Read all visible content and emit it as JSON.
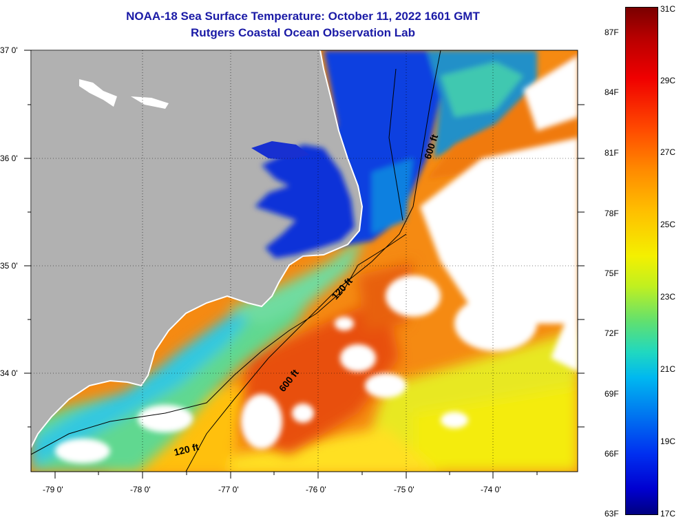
{
  "header": {
    "title": "NOAA-18 Sea Surface Temperature:  October 11, 2022 1601 GMT",
    "subtitle": "Rutgers Coastal Ocean Observation Lab"
  },
  "map": {
    "latitude_labels": [
      "37 0'",
      "36 0'",
      "35 0'",
      "34 0'"
    ],
    "longitude_labels": [
      "-79 0'",
      "-78 0'",
      "-77 0'",
      "-76 0'",
      "-75 0'",
      "-74 0'"
    ],
    "contour_labels": [
      "600 ft",
      "120 ft",
      "600 ft",
      "120 ft"
    ],
    "colors": {
      "land": "#b1b1b1",
      "cloud": "#ffffff",
      "cold_water": "#1030d8",
      "cool_water": "#20c0e0",
      "warm_water": "#ffd000",
      "hot_water": "#f06010"
    }
  },
  "color_scale": {
    "fahrenheit_labels": [
      "87F",
      "84F",
      "81F",
      "78F",
      "75F",
      "72F",
      "69F",
      "66F",
      "63F"
    ],
    "celsius_labels": [
      "31C",
      "29C",
      "27C",
      "25C",
      "23C",
      "21C",
      "19C",
      "17C"
    ]
  }
}
